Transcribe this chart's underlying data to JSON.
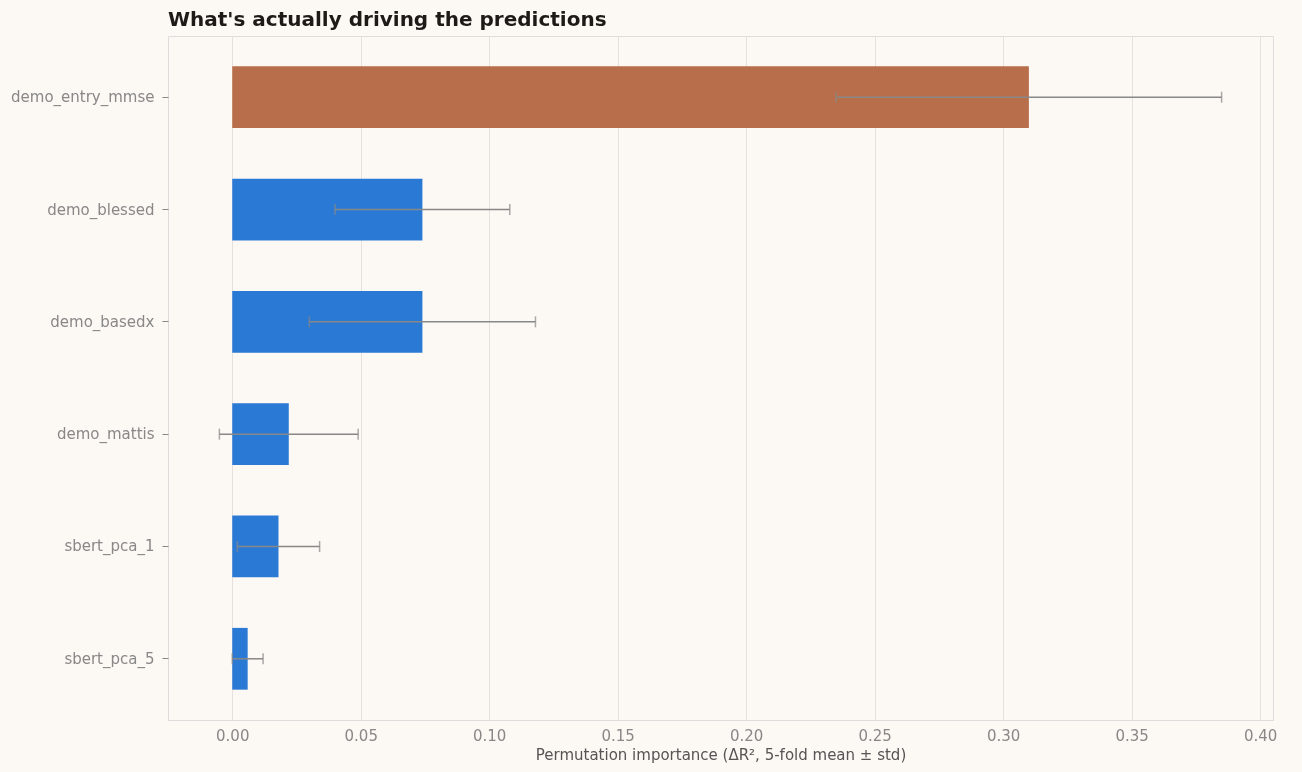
{
  "chart_data": {
    "type": "bar",
    "orientation": "horizontal",
    "title": "What's actually driving the predictions",
    "xlabel": "Permutation importance (ΔR², 5-fold mean ± std)",
    "categories": [
      "demo_entry_mmse",
      "demo_blessed",
      "demo_basedx",
      "demo_mattis",
      "sbert_pca_1",
      "sbert_pca_5"
    ],
    "values": [
      0.31,
      0.074,
      0.074,
      0.022,
      0.018,
      0.006
    ],
    "errors": [
      0.075,
      0.034,
      0.044,
      0.027,
      0.016,
      0.006
    ],
    "colors": [
      "#b86e4b",
      "#2a7ad5",
      "#2a7ad5",
      "#2a7ad5",
      "#2a7ad5",
      "#2a7ad5"
    ],
    "xlim": [
      -0.025,
      0.405
    ],
    "xticks": [
      {
        "value": 0,
        "label": "0.00"
      },
      0.05,
      {
        "value": 0.1,
        "label": "0.10"
      },
      0.15,
      {
        "value": 0.2,
        "label": "0.20"
      },
      0.25,
      {
        "value": 0.3,
        "label": "0.30"
      },
      0.35,
      {
        "value": 0.4,
        "label": "0.40"
      }
    ],
    "grid": "x"
  }
}
